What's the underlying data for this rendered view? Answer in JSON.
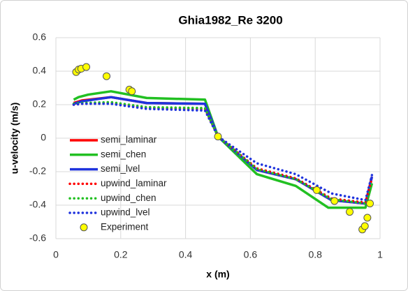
{
  "chart_data": {
    "type": "line",
    "title": "Ghia1982_Re 3200",
    "x_label": "x (m)",
    "y_label": "u-velocity (m/s)",
    "xlim": [
      0,
      1
    ],
    "xticks": [
      0,
      0.2,
      0.4,
      0.6,
      0.8,
      1
    ],
    "ylim": [
      -0.6,
      0.6
    ],
    "yticks": [
      -0.6,
      -0.4,
      -0.2,
      0,
      0.2,
      0.4,
      0.6
    ],
    "grid": true,
    "legend": "left",
    "series": [
      {
        "name": "semi_laminar",
        "color": "#ff0000",
        "dash": false,
        "x": [
          0.055,
          0.08,
          0.17,
          0.28,
          0.46,
          0.5,
          0.62,
          0.74,
          0.85,
          0.955,
          0.975
        ],
        "values": [
          0.21,
          0.225,
          0.245,
          0.21,
          0.205,
          0.01,
          -0.19,
          -0.245,
          -0.37,
          -0.39,
          -0.23
        ]
      },
      {
        "name": "semi_chen",
        "color": "#22c022",
        "dash": false,
        "x": [
          0.055,
          0.07,
          0.1,
          0.17,
          0.28,
          0.46,
          0.5,
          0.62,
          0.74,
          0.84,
          0.955,
          0.975
        ],
        "values": [
          0.23,
          0.245,
          0.26,
          0.28,
          0.24,
          0.23,
          0.01,
          -0.215,
          -0.285,
          -0.415,
          -0.415,
          -0.27
        ]
      },
      {
        "name": "semi_lvel",
        "color": "#1f33dd",
        "dash": false,
        "x": [
          0.055,
          0.08,
          0.17,
          0.28,
          0.46,
          0.5,
          0.62,
          0.74,
          0.85,
          0.955,
          0.975
        ],
        "values": [
          0.205,
          0.22,
          0.245,
          0.21,
          0.205,
          0.01,
          -0.19,
          -0.245,
          -0.37,
          -0.39,
          -0.23
        ]
      },
      {
        "name": "upwind_laminar",
        "color": "#ff0000",
        "dash": true,
        "x": [
          0.055,
          0.08,
          0.17,
          0.28,
          0.46,
          0.5,
          0.62,
          0.74,
          0.85,
          0.955,
          0.975
        ],
        "values": [
          0.2,
          0.205,
          0.21,
          0.18,
          0.175,
          0.01,
          -0.18,
          -0.24,
          -0.36,
          -0.385,
          -0.24
        ]
      },
      {
        "name": "upwind_chen",
        "color": "#22c022",
        "dash": true,
        "x": [
          0.055,
          0.08,
          0.17,
          0.28,
          0.46,
          0.5,
          0.62,
          0.74,
          0.85,
          0.955,
          0.975
        ],
        "values": [
          0.205,
          0.21,
          0.215,
          0.185,
          0.18,
          0.01,
          -0.185,
          -0.245,
          -0.365,
          -0.39,
          -0.26
        ]
      },
      {
        "name": "upwind_lvel",
        "color": "#1f33dd",
        "dash": true,
        "x": [
          0.055,
          0.08,
          0.17,
          0.28,
          0.46,
          0.5,
          0.62,
          0.74,
          0.85,
          0.955,
          0.975
        ],
        "values": [
          0.2,
          0.205,
          0.205,
          0.175,
          0.165,
          0.01,
          -0.15,
          -0.215,
          -0.33,
          -0.37,
          -0.22
        ]
      },
      {
        "name": "Experiment",
        "color": "#ffff00",
        "marker": true,
        "x": [
          0.0625,
          0.0703,
          0.0781,
          0.0938,
          0.1563,
          0.2266,
          0.2344,
          0.5,
          0.8047,
          0.8594,
          0.9063,
          0.9453,
          0.9531,
          0.9609,
          0.9688
        ],
        "values": [
          0.395,
          0.41,
          0.415,
          0.425,
          0.37,
          0.29,
          0.28,
          0.01,
          -0.31,
          -0.375,
          -0.44,
          -0.545,
          -0.525,
          -0.475,
          -0.39
        ]
      }
    ]
  }
}
